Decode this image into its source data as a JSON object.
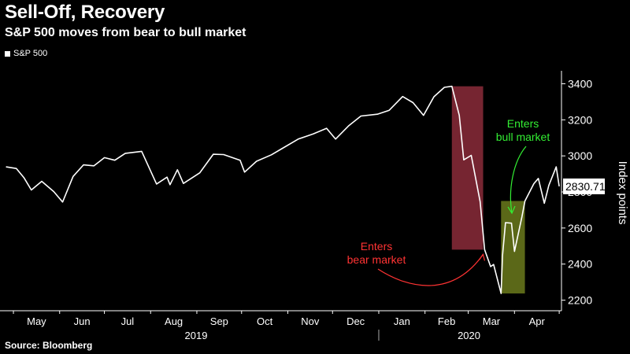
{
  "title": "Sell-Off, Recovery",
  "subtitle": "S&P 500 moves from bear to bull market",
  "legend": "S&P 500",
  "source": "Source: Bloomberg",
  "colors": {
    "background": "#000000",
    "line": "#ffffff",
    "bear_box": "#8b2b3a",
    "bull_box": "#6b7a1c",
    "bear_annotation": "#ff3333",
    "bull_annotation": "#33ee33"
  },
  "chart_data": {
    "type": "line",
    "title": "Sell-Off, Recovery",
    "subtitle": "S&P 500 moves from bear to bull market",
    "ylabel": "Index points",
    "ylim": [
      2150,
      3450
    ],
    "yticks": [
      2200,
      2400,
      2600,
      2800,
      3000,
      3200,
      3400
    ],
    "x_months": [
      "May",
      "Jun",
      "Jul",
      "Aug",
      "Sep",
      "Oct",
      "Nov",
      "Dec",
      "Jan",
      "Feb",
      "Mar",
      "Apr"
    ],
    "x_years": [
      "2019",
      "2020"
    ],
    "grid": false,
    "legend_position": "top-left",
    "last_value_label": "2830.71",
    "series": [
      {
        "name": "S&P 500",
        "x": [
          "2019-04-26",
          "2019-05-03",
          "2019-05-08",
          "2019-05-13",
          "2019-05-20",
          "2019-05-28",
          "2019-06-03",
          "2019-06-10",
          "2019-06-17",
          "2019-06-24",
          "2019-07-01",
          "2019-07-08",
          "2019-07-15",
          "2019-07-26",
          "2019-08-05",
          "2019-08-12",
          "2019-08-14",
          "2019-08-19",
          "2019-08-23",
          "2019-09-03",
          "2019-09-12",
          "2019-09-19",
          "2019-09-30",
          "2019-10-03",
          "2019-10-11",
          "2019-10-21",
          "2019-10-28",
          "2019-11-08",
          "2019-11-18",
          "2019-11-27",
          "2019-12-03",
          "2019-12-12",
          "2019-12-20",
          "2019-12-31",
          "2020-01-08",
          "2020-01-17",
          "2020-01-24",
          "2020-01-31",
          "2020-02-07",
          "2020-02-14",
          "2020-02-19",
          "2020-02-24",
          "2020-02-27",
          "2020-03-03",
          "2020-03-09",
          "2020-03-12",
          "2020-03-16",
          "2020-03-18",
          "2020-03-23",
          "2020-03-24",
          "2020-03-26",
          "2020-03-30",
          "2020-04-01",
          "2020-04-06",
          "2020-04-08",
          "2020-04-14",
          "2020-04-17",
          "2020-04-21",
          "2020-04-24",
          "2020-04-29",
          "2020-05-01"
        ],
        "y": [
          2939,
          2930,
          2880,
          2811,
          2859,
          2802,
          2744,
          2886,
          2950,
          2945,
          2990,
          2976,
          3014,
          3025,
          2844,
          2882,
          2840,
          2923,
          2847,
          2906,
          3009,
          3007,
          2976,
          2910,
          2970,
          3006,
          3040,
          3093,
          3122,
          3153,
          3093,
          3168,
          3221,
          3231,
          3253,
          3329,
          3295,
          3225,
          3328,
          3380,
          3386,
          3225,
          2978,
          3003,
          2746,
          2480,
          2386,
          2398,
          2237,
          2447,
          2630,
          2627,
          2470,
          2663,
          2750,
          2846,
          2875,
          2737,
          2836,
          2939,
          2831
        ]
      }
    ],
    "annotations": [
      {
        "label_lines": [
          "Enters",
          "bear market"
        ],
        "value": 2480,
        "date": "2020-03-12"
      },
      {
        "label_lines": [
          "Enters",
          "bull market"
        ],
        "value": 2630,
        "date": "2020-03-26"
      }
    ],
    "shaded_regions": [
      {
        "name": "bear",
        "start": "2020-02-19",
        "end": "2020-03-11",
        "ymin": 2480,
        "ymax": 3386
      },
      {
        "name": "bull",
        "start": "2020-03-23",
        "end": "2020-04-08",
        "ymin": 2237,
        "ymax": 2750
      }
    ]
  }
}
